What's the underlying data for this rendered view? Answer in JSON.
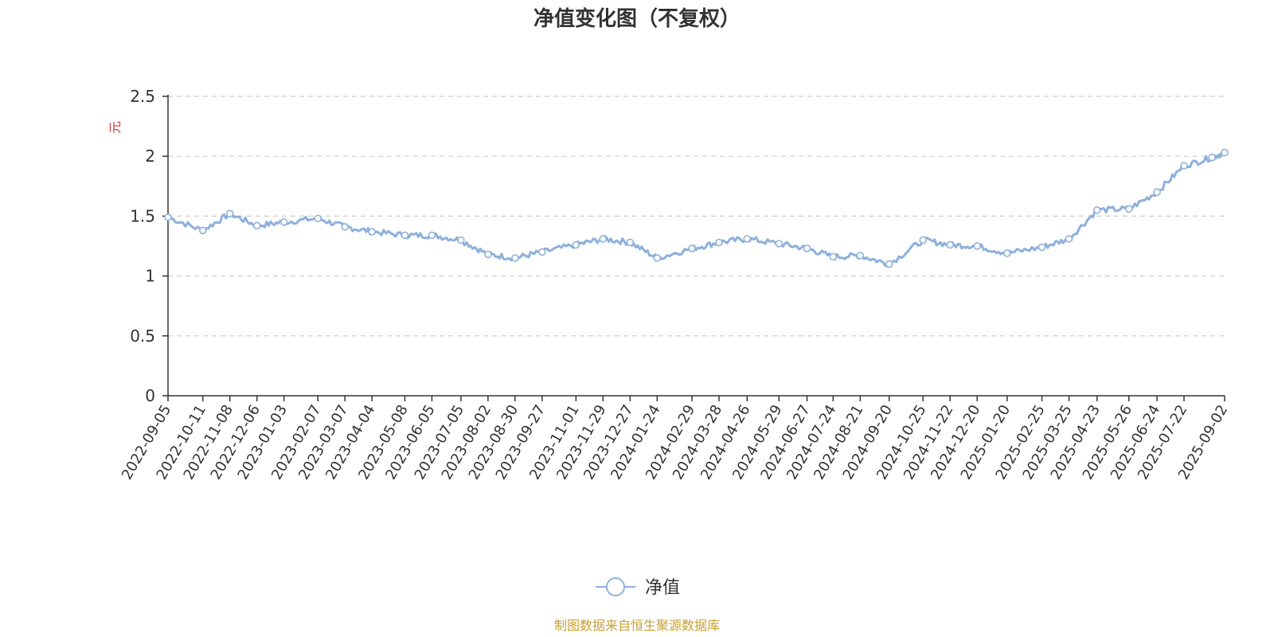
{
  "chart_data": {
    "type": "line",
    "title": "净值变化图（不复权）",
    "ylabel": "元",
    "ylim": [
      0,
      2.5
    ],
    "yticks": [
      "0",
      "0.5",
      "1",
      "1.5",
      "2",
      "2.5"
    ],
    "grid": true,
    "legend_position": "bottom-center",
    "x_tick_labels": [
      "2022-09-05",
      "2022-10-11",
      "2022-11-08",
      "2022-12-06",
      "2023-01-03",
      "2023-02-07",
      "2023-03-07",
      "2023-04-04",
      "2023-05-08",
      "2023-06-05",
      "2023-07-05",
      "2023-08-02",
      "2023-08-30",
      "2023-09-27",
      "2023-11-01",
      "2023-11-29",
      "2023-12-27",
      "2024-01-24",
      "2024-02-29",
      "2024-03-28",
      "2024-04-26",
      "2024-05-29",
      "2024-06-27",
      "2024-07-24",
      "2024-08-21",
      "2024-09-20",
      "2024-10-25",
      "2024-11-22",
      "2024-12-20",
      "2025-01-20",
      "2025-02-25",
      "2025-03-25",
      "2025-04-23",
      "2025-05-26",
      "2025-06-24",
      "2025-07-22",
      "2025-09-02"
    ],
    "series": [
      {
        "name": "净值",
        "color": "#8eb0dc",
        "x": [
          "2022-09-05",
          "2022-10-11",
          "2022-11-08",
          "2022-12-06",
          "2023-01-03",
          "2023-02-07",
          "2023-03-07",
          "2023-04-04",
          "2023-05-08",
          "2023-06-05",
          "2023-07-05",
          "2023-08-02",
          "2023-08-30",
          "2023-09-27",
          "2023-11-01",
          "2023-11-29",
          "2023-12-27",
          "2024-01-24",
          "2024-02-29",
          "2024-03-28",
          "2024-04-26",
          "2024-05-29",
          "2024-06-27",
          "2024-07-24",
          "2024-08-21",
          "2024-09-20",
          "2024-10-25",
          "2024-11-22",
          "2024-12-20",
          "2025-01-20",
          "2025-02-25",
          "2025-03-25",
          "2025-04-23",
          "2025-05-26",
          "2025-06-24",
          "2025-07-22",
          "2025-08-20",
          "2025-09-02"
        ],
        "values": [
          1.49,
          1.38,
          1.52,
          1.42,
          1.45,
          1.48,
          1.41,
          1.37,
          1.34,
          1.34,
          1.3,
          1.18,
          1.15,
          1.2,
          1.26,
          1.31,
          1.28,
          1.15,
          1.23,
          1.28,
          1.31,
          1.27,
          1.23,
          1.16,
          1.17,
          1.1,
          1.3,
          1.26,
          1.25,
          1.19,
          1.24,
          1.31,
          1.55,
          1.56,
          1.7,
          1.92,
          1.99,
          2.03
        ]
      }
    ]
  },
  "source": {
    "text": "制图数据来自恒生聚源数据库",
    "color": "#c8a030"
  },
  "colors": {
    "axis": "#333333",
    "grid": "#cccccc",
    "unit": "#e03030"
  }
}
